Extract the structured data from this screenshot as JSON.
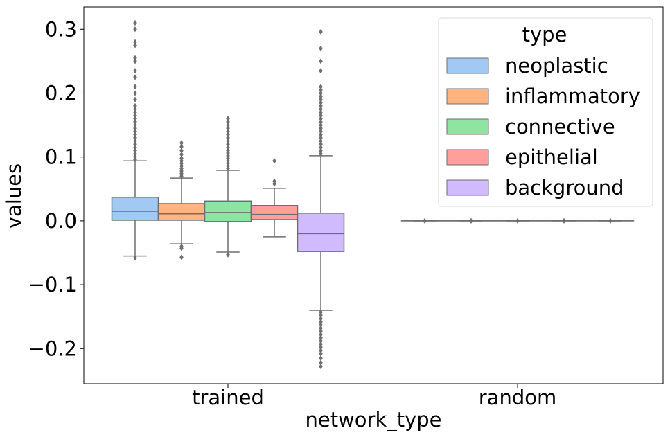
{
  "chart_data": {
    "type": "box",
    "xlabel": "network_type",
    "ylabel": "values",
    "categories": [
      "trained",
      "random"
    ],
    "ylim": [
      -0.255,
      0.335
    ],
    "yticks": [
      -0.2,
      -0.1,
      0.0,
      0.1,
      0.2,
      0.3
    ],
    "ytick_labels": [
      "−0.2",
      "−0.1",
      "0.0",
      "0.1",
      "0.2",
      "0.3"
    ],
    "legend": {
      "title": "type",
      "placement": "top-right"
    },
    "series": [
      {
        "name": "neoplastic",
        "color": "#a1c9f4",
        "boxes": [
          {
            "category": "trained",
            "q1": 0.001,
            "median": 0.015,
            "q3": 0.037,
            "whisker_low": -0.055,
            "whisker_high": 0.094,
            "outliers_high": [
              0.096,
              0.1,
              0.105,
              0.11,
              0.115,
              0.12,
              0.125,
              0.13,
              0.135,
              0.14,
              0.145,
              0.15,
              0.155,
              0.16,
              0.165,
              0.17,
              0.175,
              0.18,
              0.19,
              0.2,
              0.21,
              0.225,
              0.235,
              0.25,
              0.255,
              0.275,
              0.28,
              0.3,
              0.31
            ],
            "outliers_low": [
              -0.058
            ]
          },
          {
            "category": "random",
            "q1": 0.0,
            "median": 0.0,
            "q3": 0.0,
            "whisker_low": 0.0,
            "whisker_high": 0.0,
            "outliers_high": [
              0.0
            ],
            "outliers_low": []
          }
        ]
      },
      {
        "name": "inflammatory",
        "color": "#ffb482",
        "boxes": [
          {
            "category": "trained",
            "q1": 0.001,
            "median": 0.011,
            "q3": 0.027,
            "whisker_low": -0.036,
            "whisker_high": 0.067,
            "outliers_high": [
              0.07,
              0.074,
              0.078,
              0.082,
              0.086,
              0.09,
              0.094,
              0.098,
              0.104,
              0.11,
              0.116,
              0.122
            ],
            "outliers_low": [
              -0.04,
              -0.043,
              -0.057
            ]
          },
          {
            "category": "random",
            "q1": 0.0,
            "median": 0.0,
            "q3": 0.0,
            "whisker_low": 0.0,
            "whisker_high": 0.0,
            "outliers_high": [
              0.0
            ],
            "outliers_low": []
          }
        ]
      },
      {
        "name": "connective",
        "color": "#8de5a1",
        "boxes": [
          {
            "category": "trained",
            "q1": -0.001,
            "median": 0.013,
            "q3": 0.031,
            "whisker_low": -0.049,
            "whisker_high": 0.079,
            "outliers_high": [
              0.082,
              0.086,
              0.09,
              0.094,
              0.098,
              0.102,
              0.106,
              0.11,
              0.115,
              0.12,
              0.125,
              0.13,
              0.135,
              0.14,
              0.145,
              0.15,
              0.155,
              0.16
            ],
            "outliers_low": [
              -0.053
            ]
          },
          {
            "category": "random",
            "q1": 0.0,
            "median": 0.0,
            "q3": 0.0,
            "whisker_low": 0.0,
            "whisker_high": 0.0,
            "outliers_high": [
              0.0
            ],
            "outliers_low": []
          }
        ]
      },
      {
        "name": "epithelial",
        "color": "#ff9f9b",
        "boxes": [
          {
            "category": "trained",
            "q1": 0.002,
            "median": 0.01,
            "q3": 0.024,
            "whisker_low": -0.025,
            "whisker_high": 0.051,
            "outliers_high": [
              0.058,
              0.062,
              0.094
            ],
            "outliers_low": []
          },
          {
            "category": "random",
            "q1": 0.0,
            "median": 0.0,
            "q3": 0.0,
            "whisker_low": 0.0,
            "whisker_high": 0.0,
            "outliers_high": [
              0.0
            ],
            "outliers_low": []
          }
        ]
      },
      {
        "name": "background",
        "color": "#d0bbff",
        "boxes": [
          {
            "category": "trained",
            "q1": -0.048,
            "median": -0.02,
            "q3": 0.012,
            "whisker_low": -0.14,
            "whisker_high": 0.102,
            "outliers_high": [
              0.105,
              0.11,
              0.115,
              0.12,
              0.125,
              0.13,
              0.135,
              0.14,
              0.145,
              0.15,
              0.155,
              0.16,
              0.165,
              0.17,
              0.175,
              0.18,
              0.185,
              0.19,
              0.195,
              0.2,
              0.205,
              0.21,
              0.235,
              0.25,
              0.27,
              0.296
            ],
            "outliers_low": [
              -0.143,
              -0.148,
              -0.153,
              -0.158,
              -0.163,
              -0.168,
              -0.173,
              -0.178,
              -0.183,
              -0.188,
              -0.193,
              -0.198,
              -0.203,
              -0.208,
              -0.215,
              -0.222,
              -0.228
            ]
          },
          {
            "category": "random",
            "q1": 0.0,
            "median": 0.0,
            "q3": 0.0,
            "whisker_low": 0.0,
            "whisker_high": 0.0,
            "outliers_high": [
              0.0
            ],
            "outliers_low": []
          }
        ]
      }
    ]
  }
}
